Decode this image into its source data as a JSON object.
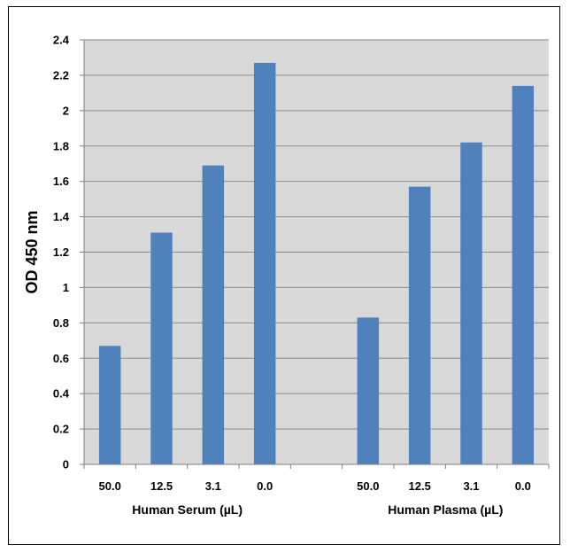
{
  "chart_data": {
    "type": "bar",
    "ylabel": "OD 450 nm",
    "ylim": [
      0,
      2.4
    ],
    "yticks": [
      "0",
      "0.2",
      "0.4",
      "0.6",
      "0.8",
      "1",
      "1.2",
      "1.4",
      "1.6",
      "1.8",
      "2",
      "2.2",
      "2.4"
    ],
    "grid": true,
    "bar_color": "#4F81BD",
    "plot_background": "#D9D9D9",
    "groups": [
      {
        "label": "Human Serum (µL)",
        "categories": [
          "50.0",
          "12.5",
          "3.1",
          "0.0"
        ],
        "values": [
          0.67,
          1.31,
          1.69,
          2.27
        ]
      },
      {
        "label": "Human Plasma (µL)",
        "categories": [
          "50.0",
          "12.5",
          "3.1",
          "0.0"
        ],
        "values": [
          0.83,
          1.57,
          1.82,
          2.14
        ]
      }
    ]
  }
}
